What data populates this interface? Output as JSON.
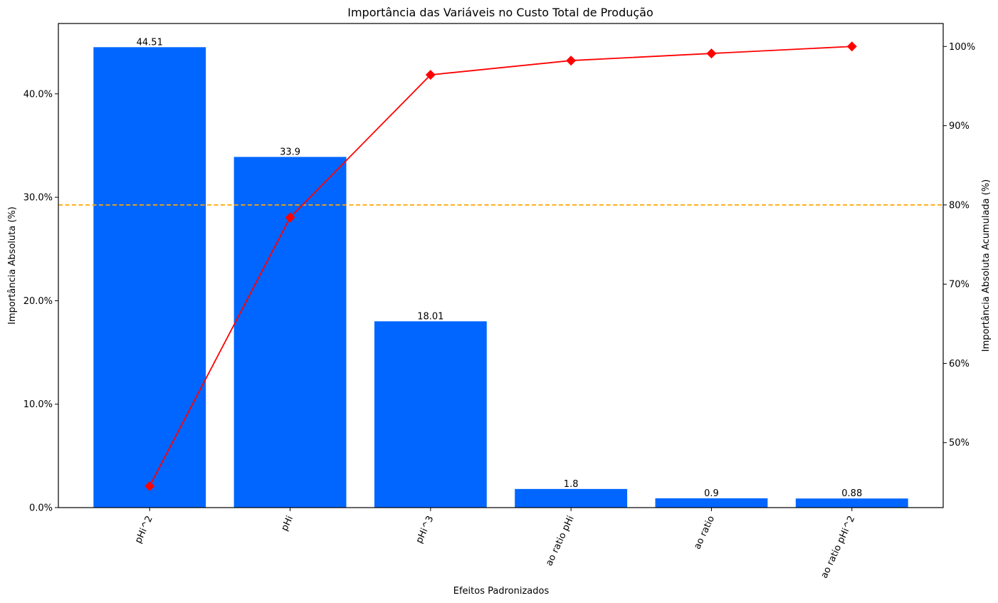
{
  "chart_data": {
    "type": "bar",
    "title": "Importância das Variáveis no Custo Total de Produção",
    "xlabel": "Efeitos Padronizados",
    "ylabel": "Importância Absoluta (%)",
    "y2label": "Importância Absoluta Acumulada (%)",
    "categories": [
      "pHi^2",
      "pHi",
      "pHi^3",
      "ao ratio pHi",
      "ao ratio",
      "ao ratio pHi^2"
    ],
    "series": [
      {
        "kind": "bar",
        "axis": "left",
        "color": "#0066ff",
        "values": [
          44.51,
          33.9,
          18.01,
          1.8,
          0.9,
          0.88
        ],
        "value_labels": [
          "44.51",
          "33.9",
          "18.01",
          "1.8",
          "0.9",
          "0.88"
        ]
      },
      {
        "kind": "line",
        "axis": "right",
        "color": "#ff0000",
        "marker": "diamond",
        "values": [
          44.51,
          78.41,
          96.42,
          98.22,
          99.12,
          100.0
        ]
      }
    ],
    "ylim": [
      0,
      46.8
    ],
    "yticks": [
      0,
      10,
      20,
      30,
      40
    ],
    "ytick_labels": [
      "0.0%",
      "10.0%",
      "20.0%",
      "30.0%",
      "40.0%"
    ],
    "y2lim": [
      41.8,
      102.9
    ],
    "y2ticks": [
      50,
      60,
      70,
      80,
      90,
      100
    ],
    "y2tick_labels": [
      "50%",
      "60%",
      "70%",
      "80%",
      "90%",
      "100%"
    ],
    "reference_line": {
      "axis": "right",
      "value": 80,
      "color": "#ffa500",
      "style": "dashed"
    },
    "grid": false,
    "legend": "none"
  }
}
